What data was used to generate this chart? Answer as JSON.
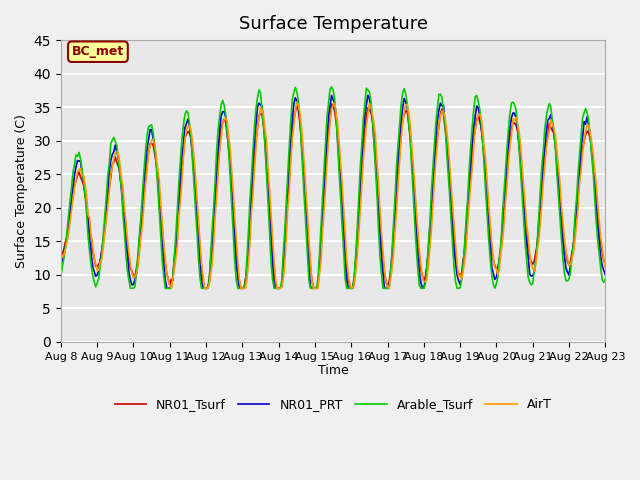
{
  "title": "Surface Temperature",
  "ylabel": "Surface Temperature (C)",
  "xlabel": "Time",
  "annotation": "BC_met",
  "ylim": [
    0,
    45
  ],
  "xlim": [
    0,
    360
  ],
  "bg_color": "#e8e8e8",
  "grid_color": "#ffffff",
  "legend_labels": [
    "NR01_Tsurf",
    "NR01_PRT",
    "Arable_Tsurf",
    "AirT"
  ],
  "line_colors": [
    "#cc0000",
    "#0000cc",
    "#00cc00",
    "#ff9900"
  ],
  "x_tick_labels": [
    "Aug 8",
    "Aug 9",
    "Aug 10",
    "Aug 11",
    "Aug 12",
    "Aug 13",
    "Aug 14",
    "Aug 15",
    "Aug 16",
    "Aug 17",
    "Aug 18",
    "Aug 19",
    "Aug 20",
    "Aug 21",
    "Aug 22",
    "Aug 23"
  ],
  "x_tick_positions": [
    0,
    24,
    48,
    72,
    96,
    120,
    144,
    168,
    192,
    216,
    240,
    264,
    288,
    312,
    336,
    360
  ]
}
